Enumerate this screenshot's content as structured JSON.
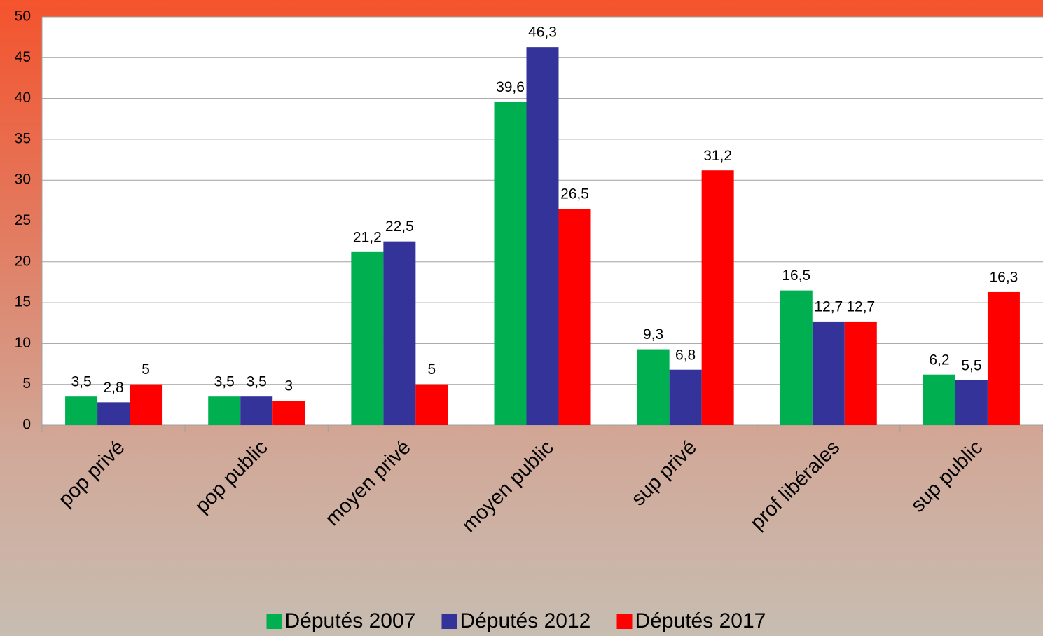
{
  "chart_data": {
    "type": "bar",
    "categories": [
      "pop privé",
      "pop public",
      "moyen privé",
      "moyen public",
      "sup privé",
      "prof libérales",
      "sup public"
    ],
    "series": [
      {
        "name": "Députés 2007",
        "color": "#00b050",
        "values": [
          3.5,
          3.5,
          21.2,
          39.6,
          9.3,
          16.5,
          6.2
        ],
        "value_labels": [
          "3,5",
          "3,5",
          "21,2",
          "39,6",
          "9,3",
          "16,5",
          "6,2"
        ]
      },
      {
        "name": "Députés 2012",
        "color": "#333399",
        "values": [
          2.8,
          3.5,
          22.5,
          46.3,
          6.8,
          12.7,
          5.5
        ],
        "value_labels": [
          "2,8",
          "3,5",
          "22,5",
          "46,3",
          "6,8",
          "12,7",
          "5,5"
        ]
      },
      {
        "name": "Députés 2017",
        "color": "#ff0000",
        "values": [
          5,
          3,
          5,
          26.5,
          31.2,
          12.7,
          16.3
        ],
        "value_labels": [
          "5",
          "3",
          "5",
          "26,5",
          "31,2",
          "12,7",
          "16,3"
        ]
      }
    ],
    "ylim": [
      0,
      50
    ],
    "yticks": [
      0,
      5,
      10,
      15,
      20,
      25,
      30,
      35,
      40,
      45,
      50
    ],
    "grid": true,
    "legend": "bottom"
  }
}
